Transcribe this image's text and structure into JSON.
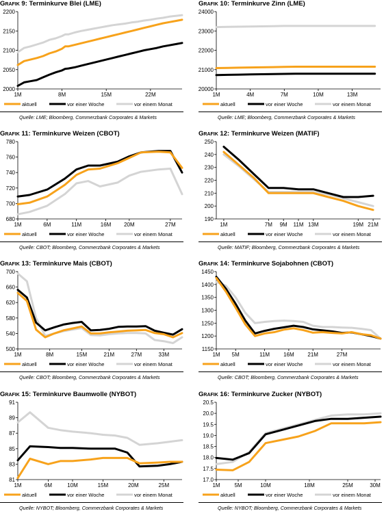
{
  "legend_labels": [
    "aktuell",
    "vor einer Woche",
    "vor einem Monat"
  ],
  "colors": {
    "aktuell": "#f7a21b",
    "woche": "#000000",
    "monat": "#d4d4d4"
  },
  "chart_data": [
    {
      "type": "line",
      "title_prefix": "Grafik 9:",
      "title_text": "Terminkurve Blei (LME)",
      "source": "Quelle: LME; Bloomberg, Commerzbank Corporates & Markets",
      "x": [
        1,
        2,
        3,
        4,
        5,
        6,
        7,
        8,
        8.5,
        9,
        10,
        11,
        12,
        13,
        14,
        15,
        16,
        17,
        18,
        19,
        20,
        21,
        22,
        23,
        24,
        25,
        26,
        27
      ],
      "xlim": [
        1,
        27
      ],
      "xticks": [
        1,
        8,
        15,
        22
      ],
      "xticklabels": [
        "1M",
        "8M",
        "15M",
        "22M"
      ],
      "ylim": [
        2000,
        2200
      ],
      "yticks": [
        2000,
        2050,
        2100,
        2150,
        2200
      ],
      "series": [
        {
          "name": "aktuell",
          "values": [
            2062,
            2072,
            2076,
            2080,
            2085,
            2092,
            2097,
            2104,
            2110,
            2110,
            2114,
            2118,
            2122,
            2126,
            2130,
            2134,
            2138,
            2142,
            2146,
            2150,
            2154,
            2158,
            2162,
            2166,
            2170,
            2173,
            2176,
            2179
          ]
        },
        {
          "name": "vor einer Woche",
          "values": [
            2008,
            2017,
            2020,
            2023,
            2030,
            2037,
            2043,
            2048,
            2052,
            2053,
            2056,
            2060,
            2064,
            2068,
            2072,
            2076,
            2080,
            2084,
            2088,
            2092,
            2096,
            2100,
            2103,
            2106,
            2110,
            2113,
            2116,
            2119
          ]
        },
        {
          "name": "vor einem Monat",
          "values": [
            2095,
            2106,
            2110,
            2115,
            2120,
            2127,
            2131,
            2137,
            2141,
            2141,
            2146,
            2150,
            2153,
            2156,
            2159,
            2162,
            2165,
            2167,
            2169,
            2172,
            2174,
            2177,
            2179,
            2182,
            2184,
            2187,
            2189,
            2191
          ]
        }
      ]
    },
    {
      "type": "line",
      "title_prefix": "Grafik 10:",
      "title_text": "Terminkurve Zinn (LME)",
      "source": "Quelle: LME; Bloomberg, Commerzbank Corporates & Markets",
      "x": [
        1,
        2,
        3,
        4,
        5,
        6,
        7,
        8,
        9,
        10,
        11,
        12,
        13,
        14,
        15
      ],
      "xlim": [
        1,
        15.5
      ],
      "xticks": [
        1,
        4,
        7,
        10,
        13
      ],
      "xticklabels": [
        "1M",
        "4M",
        "7M",
        "10M",
        "13M"
      ],
      "ylim": [
        20000,
        24000
      ],
      "yticks": [
        20000,
        21000,
        22000,
        23000,
        24000
      ],
      "series": [
        {
          "name": "aktuell",
          "values": [
            21080,
            21090,
            21100,
            21110,
            21120,
            21130,
            21140,
            21150,
            21150,
            21150,
            21150,
            21150,
            21150,
            21150,
            21150
          ]
        },
        {
          "name": "vor einer Woche",
          "values": [
            20720,
            20730,
            20740,
            20750,
            20760,
            20770,
            20780,
            20790,
            20790,
            20790,
            20790,
            20790,
            20790,
            20790,
            20790
          ]
        },
        {
          "name": "vor einem Monat",
          "values": [
            23200,
            23210,
            23220,
            23230,
            23240,
            23250,
            23260,
            23260,
            23260,
            23260,
            23260,
            23260,
            23260,
            23260,
            23260
          ]
        }
      ]
    },
    {
      "type": "line",
      "title_prefix": "Grafik 11:",
      "title_text": "Terminkurve Weizen (CBOT)",
      "source": "Quelle: CBOT; Bloomberg, Commerzbank Corporates & Markets",
      "x": [
        1,
        3,
        6,
        9,
        11,
        13,
        15,
        18,
        20,
        22,
        25,
        27,
        29
      ],
      "xlim": [
        1,
        29
      ],
      "xticks": [
        1,
        6,
        11,
        16,
        20,
        27
      ],
      "xticklabels": [
        "1M",
        "6M",
        "11M",
        "16M",
        "20M",
        "27M"
      ],
      "ylim": [
        680,
        780
      ],
      "yticks": [
        680,
        700,
        720,
        740,
        760,
        780
      ],
      "series": [
        {
          "name": "aktuell",
          "values": [
            699,
            701,
            709,
            724,
            737,
            744,
            745,
            752,
            759,
            766,
            767,
            766,
            746
          ]
        },
        {
          "name": "vor einer Woche",
          "values": [
            709,
            711,
            718,
            732,
            744,
            749,
            749,
            754,
            761,
            766,
            768,
            768,
            740
          ]
        },
        {
          "name": "vor einem Monat",
          "values": [
            686,
            689,
            697,
            712,
            726,
            729,
            722,
            727,
            736,
            741,
            744,
            745,
            712
          ]
        }
      ]
    },
    {
      "type": "line",
      "title_prefix": "Grafik 12:",
      "title_text": "Terminkurve Weizen (MATIF)",
      "source": "Quelle: MATIF; Bloomberg, Commerzbank Corporates & Markets",
      "x": [
        1,
        3,
        5,
        7,
        9,
        11,
        13,
        15,
        17,
        19,
        21
      ],
      "xlim": [
        0,
        22
      ],
      "xticks": [
        1,
        7,
        9,
        11,
        13,
        19,
        21
      ],
      "xticklabels": [
        "1M",
        "7M",
        "9M",
        "11M",
        "13M",
        "19M",
        "21M"
      ],
      "ylim": [
        190,
        250
      ],
      "yticks": [
        190,
        200,
        210,
        220,
        230,
        240,
        250
      ],
      "series": [
        {
          "name": "aktuell",
          "values": [
            242,
            232,
            222,
            210,
            210,
            210,
            210,
            207,
            204,
            200,
            197
          ]
        },
        {
          "name": "vor einer Woche",
          "values": [
            246,
            236,
            225,
            214,
            214,
            213,
            213,
            210,
            207,
            207,
            208
          ]
        },
        {
          "name": "vor einem Monat",
          "values": [
            240,
            231,
            221,
            211,
            211,
            211,
            211,
            209,
            206,
            203,
            200
          ]
        }
      ]
    },
    {
      "type": "line",
      "title_prefix": "Grafik 13:",
      "title_text": "Terminkurve Mais (CBOT)",
      "source": "Quelle: CBOT; Bloomberg, Commerzbank Corporates & Markets",
      "x": [
        1,
        3,
        5,
        7,
        9,
        11,
        13,
        15,
        17,
        19,
        21,
        23,
        25,
        27,
        29,
        31,
        33,
        35,
        37
      ],
      "xlim": [
        1,
        37
      ],
      "xticks": [
        1,
        8,
        15,
        21,
        27,
        33
      ],
      "xticklabels": [
        "1M",
        "8M",
        "15M",
        "21M",
        "27M",
        "33M"
      ],
      "ylim": [
        500,
        700
      ],
      "yticks": [
        500,
        540,
        580,
        620,
        660,
        700
      ],
      "series": [
        {
          "name": "aktuell",
          "values": [
            645,
            624,
            550,
            530,
            540,
            548,
            553,
            558,
            540,
            540,
            543,
            545,
            547,
            548,
            549,
            541,
            538,
            530,
            541
          ]
        },
        {
          "name": "vor einer Woche",
          "values": [
            653,
            633,
            568,
            548,
            556,
            563,
            567,
            570,
            548,
            549,
            552,
            557,
            558,
            558,
            559,
            547,
            542,
            537,
            551
          ]
        },
        {
          "name": "vor einem Monat",
          "values": [
            695,
            675,
            580,
            534,
            540,
            546,
            550,
            554,
            536,
            535,
            538,
            540,
            541,
            541,
            540,
            523,
            520,
            515,
            530
          ]
        }
      ]
    },
    {
      "type": "line",
      "title_prefix": "Grafik 14:",
      "title_text": "Terminkurve Sojabohnen (CBOT)",
      "source": "Quelle: CBOT; Bloomberg, Commerzbank Corporates & Markets",
      "x": [
        1,
        3,
        5,
        7,
        9,
        11,
        13,
        15,
        17,
        19,
        21,
        23,
        25,
        27,
        29,
        31,
        33,
        35
      ],
      "xlim": [
        1,
        35
      ],
      "xticks": [
        1,
        5,
        11,
        16,
        21,
        27
      ],
      "xticklabels": [
        "1M",
        "5M",
        "11M",
        "16M",
        "21M",
        "27M"
      ],
      "ylim": [
        1150,
        1450
      ],
      "yticks": [
        1150,
        1200,
        1250,
        1300,
        1350,
        1400,
        1450
      ],
      "series": [
        {
          "name": "aktuell",
          "values": [
            1425,
            1372,
            1310,
            1245,
            1200,
            1210,
            1215,
            1225,
            1230,
            1223,
            1213,
            1215,
            1212,
            1210,
            1215,
            1207,
            1203,
            1190
          ]
        },
        {
          "name": "vor einer Woche",
          "values": [
            1430,
            1383,
            1325,
            1260,
            1210,
            1220,
            1228,
            1234,
            1240,
            1235,
            1226,
            1222,
            1218,
            1212,
            1214,
            1207,
            1200,
            1190
          ]
        },
        {
          "name": "vor einem Monat",
          "values": [
            1410,
            1395,
            1350,
            1290,
            1250,
            1255,
            1258,
            1260,
            1258,
            1255,
            1240,
            1235,
            1235,
            1233,
            1232,
            1228,
            1223,
            1190
          ]
        }
      ]
    },
    {
      "type": "line",
      "title_prefix": "Grafik 15:",
      "title_text": "Terminkurve Baumwolle (NYBOT)",
      "source": "Quelle: NYBOT; Bloomberg, Commerzbank Corporates & Markets",
      "x": [
        1,
        3,
        6,
        8,
        10,
        13,
        15,
        17,
        19,
        21,
        24,
        26,
        28
      ],
      "xlim": [
        1,
        28
      ],
      "xticks": [
        1,
        6,
        10,
        15,
        20,
        25
      ],
      "xticklabels": [
        "1M",
        "6M",
        "10M",
        "15M",
        "20M",
        "25M"
      ],
      "ylim": [
        81,
        91
      ],
      "yticks": [
        81,
        83,
        85,
        87,
        89,
        91
      ],
      "series": [
        {
          "name": "aktuell",
          "values": [
            81.2,
            83.7,
            83.0,
            83.4,
            83.4,
            83.6,
            83.8,
            83.8,
            83.8,
            83.1,
            83.2,
            83.3,
            83.3
          ]
        },
        {
          "name": "vor einer Woche",
          "values": [
            83.5,
            85.3,
            85.2,
            85.1,
            85.1,
            85.0,
            85.0,
            85.0,
            84.5,
            82.7,
            82.8,
            83.0,
            83.3
          ]
        },
        {
          "name": "vor einem Monat",
          "values": [
            88.4,
            89.7,
            87.7,
            87.4,
            87.2,
            87.0,
            86.8,
            86.7,
            86.4,
            85.5,
            85.7,
            85.9,
            86.1
          ]
        }
      ]
    },
    {
      "type": "line",
      "title_prefix": "Grafik 16:",
      "title_text": "Terminkurve Zucker (NYBOT)",
      "source": "Quelle: NYBOT; Bloomberg, Commerzbank Corporates & Markets",
      "x": [
        1,
        4,
        7,
        10,
        13,
        16,
        19,
        22,
        25,
        28,
        31
      ],
      "xlim": [
        1,
        31
      ],
      "xticks": [
        1,
        5,
        10,
        18,
        25,
        30
      ],
      "xticklabels": [
        "1M",
        "5M",
        "10M",
        "18M",
        "25M",
        "30M"
      ],
      "ylim": [
        17.0,
        20.5
      ],
      "yticks": [
        17.0,
        17.5,
        18.0,
        18.5,
        19.0,
        19.5,
        20.0,
        20.5
      ],
      "yticklabels": [
        "17.0",
        "17.5",
        "18.0",
        "18.5",
        "19.0",
        "19.5",
        "20.0",
        "20.5"
      ],
      "series": [
        {
          "name": "aktuell",
          "values": [
            17.45,
            17.42,
            17.8,
            18.65,
            18.8,
            18.95,
            19.2,
            19.55,
            19.55,
            19.55,
            19.6
          ]
        },
        {
          "name": "vor einer Woche",
          "values": [
            17.98,
            17.9,
            18.2,
            19.05,
            19.25,
            19.45,
            19.65,
            19.75,
            19.75,
            19.8,
            19.85
          ]
        },
        {
          "name": "vor einem Monat",
          "values": [
            17.7,
            17.8,
            18.25,
            19.1,
            19.3,
            19.5,
            19.7,
            19.9,
            19.95,
            19.95,
            20.0
          ]
        }
      ]
    }
  ]
}
